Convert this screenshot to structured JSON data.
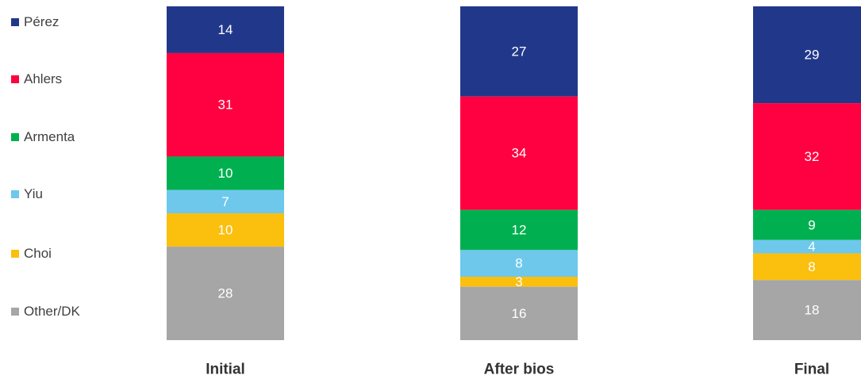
{
  "chart_data": {
    "type": "bar",
    "stacked": true,
    "categories": [
      "Initial",
      "After bios",
      "Final"
    ],
    "series": [
      {
        "name": "Pérez",
        "color": "#21388A",
        "values": [
          14,
          27,
          29
        ]
      },
      {
        "name": "Ahlers",
        "color": "#FF0040",
        "values": [
          31,
          34,
          32
        ]
      },
      {
        "name": "Armenta",
        "color": "#00B050",
        "values": [
          10,
          12,
          9
        ]
      },
      {
        "name": "Yiu",
        "color": "#6DC8EC",
        "values": [
          7,
          8,
          4
        ]
      },
      {
        "name": "Choi",
        "color": "#FBBF0E",
        "values": [
          10,
          3,
          8
        ]
      },
      {
        "name": "Other/DK",
        "color": "#A6A6A6",
        "values": [
          28,
          16,
          18
        ]
      }
    ],
    "legend_position": "left",
    "grid": false,
    "ylim": [
      0,
      100
    ]
  }
}
